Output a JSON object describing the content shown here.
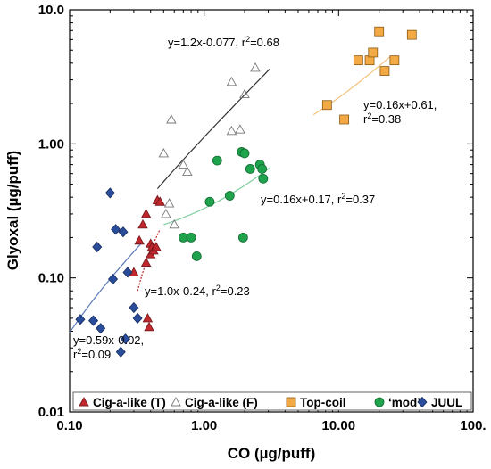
{
  "chart_data": {
    "type": "scatter",
    "xlabel": "CO (µg/puff)",
    "ylabel": "Glyoxal (µg/puff)",
    "xscale": "log",
    "yscale": "log",
    "xlim": [
      0.1,
      100
    ],
    "ylim": [
      0.01,
      10
    ],
    "grid": false,
    "x_ticks": [
      0.1,
      1,
      10,
      100
    ],
    "x_tick_labels": [
      "0.10",
      "1.00",
      "10.00",
      "100."
    ],
    "y_ticks": [
      0.01,
      0.1,
      1,
      10
    ],
    "y_tick_labels": [
      "0.01",
      "0.10",
      "1.00",
      "10.0"
    ],
    "legend_position": "bottom",
    "series": [
      {
        "name": "Cig-a-like (T)",
        "marker": "filled-triangle",
        "color": "#c0282d",
        "points": [
          [
            0.3,
            0.11
          ],
          [
            0.33,
            0.19
          ],
          [
            0.35,
            0.25
          ],
          [
            0.37,
            0.3
          ],
          [
            0.4,
            0.15
          ],
          [
            0.4,
            0.18
          ],
          [
            0.41,
            0.17
          ],
          [
            0.42,
            0.16
          ],
          [
            0.44,
            0.17
          ],
          [
            0.45,
            0.38
          ],
          [
            0.47,
            0.37
          ],
          [
            0.37,
            0.13
          ],
          [
            0.38,
            0.05
          ],
          [
            0.39,
            0.043
          ]
        ]
      },
      {
        "name": "Cig-a-like (F)",
        "marker": "open-triangle",
        "color": "#555555",
        "points": [
          [
            0.5,
            0.85
          ],
          [
            0.52,
            0.3
          ],
          [
            0.55,
            0.36
          ],
          [
            0.57,
            1.52
          ],
          [
            0.6,
            0.25
          ],
          [
            0.7,
            0.7
          ],
          [
            0.75,
            0.62
          ],
          [
            1.6,
            2.9
          ],
          [
            1.6,
            1.25
          ],
          [
            1.85,
            1.28
          ],
          [
            2.0,
            2.35
          ],
          [
            2.4,
            3.7
          ]
        ]
      },
      {
        "name": "Top-coil",
        "marker": "filled-square",
        "color": "#f3a944",
        "points": [
          [
            8.2,
            1.95
          ],
          [
            11.0,
            1.52
          ],
          [
            14.0,
            4.2
          ],
          [
            17.0,
            4.2
          ],
          [
            18.0,
            4.8
          ],
          [
            20.0,
            6.9
          ],
          [
            22.0,
            3.5
          ],
          [
            26.0,
            4.2
          ],
          [
            35.0,
            6.5
          ]
        ]
      },
      {
        "name": "‘mod’",
        "marker": "filled-circle",
        "color": "#1ea24c",
        "points": [
          [
            0.7,
            0.2
          ],
          [
            0.8,
            0.2
          ],
          [
            0.88,
            0.145
          ],
          [
            1.1,
            0.37
          ],
          [
            1.25,
            0.75
          ],
          [
            1.55,
            0.41
          ],
          [
            1.9,
            0.87
          ],
          [
            1.95,
            0.2
          ],
          [
            2.2,
            0.65
          ],
          [
            2.6,
            0.7
          ],
          [
            2.7,
            0.65
          ],
          [
            2.75,
            0.55
          ],
          [
            2.0,
            0.85
          ]
        ]
      },
      {
        "name": "JUUL",
        "marker": "filled-diamond",
        "color": "#2a4d9b",
        "points": [
          [
            0.12,
            0.049
          ],
          [
            0.15,
            0.048
          ],
          [
            0.16,
            0.17
          ],
          [
            0.17,
            0.042
          ],
          [
            0.2,
            0.43
          ],
          [
            0.21,
            0.098
          ],
          [
            0.22,
            0.23
          ],
          [
            0.25,
            0.22
          ],
          [
            0.26,
            0.035
          ],
          [
            0.27,
            0.11
          ],
          [
            0.3,
            0.06
          ],
          [
            0.32,
            0.05
          ],
          [
            0.24,
            0.028
          ]
        ]
      }
    ],
    "fits": [
      {
        "label": "y=1.2x-0.077, r²=0.68",
        "color": "#333333",
        "x_range": [
          0.45,
          3.1
        ],
        "a": 1.2,
        "b": -0.077
      },
      {
        "label": "y=0.16x+0.61, r²=0.38",
        "color": "#f5c27a",
        "x_range": [
          6.5,
          24
        ],
        "a": 0.16,
        "b": 0.61
      },
      {
        "label": "y=0.16x+0.17, r²=0.37",
        "color": "#7fcf9f",
        "x_range": [
          0.5,
          3.1
        ],
        "a": 0.16,
        "b": 0.17
      },
      {
        "label": "y=1.0x-0.24, r²=0.23",
        "color": "#c0282d",
        "x_range": [
          0.32,
          0.47
        ],
        "a": 1.0,
        "b": -0.24
      },
      {
        "label": "y=0.59x-0.02, r²=0.09",
        "color": "#5b78b8",
        "x_range": [
          0.1,
          0.34
        ],
        "a": 0.59,
        "b": -0.02
      }
    ],
    "annotations": [
      {
        "lines": [
          "y=1.2x-0.077, r",
          "2",
          "=0.68"
        ],
        "text": "y=1.2x-0.077, r²=0.68"
      },
      {
        "lines": [
          "y=0.16x+0.61,",
          "r",
          "2",
          "=0.38"
        ],
        "text": "y=0.16x+0.61, r²=0.38"
      },
      {
        "lines": [
          "y=0.16x+0.17, r",
          "2",
          "=0.37"
        ],
        "text": "y=0.16x+0.17, r²=0.37"
      },
      {
        "lines": [
          "y=1.0x-0.24, r",
          "2",
          "=0.23"
        ],
        "text": "y=1.0x-0.24, r²=0.23"
      },
      {
        "lines": [
          "y=0.59x-0.02,",
          "r",
          "2",
          "=0.09"
        ],
        "text": "y=0.59x-0.02, r²=0.09"
      }
    ]
  }
}
